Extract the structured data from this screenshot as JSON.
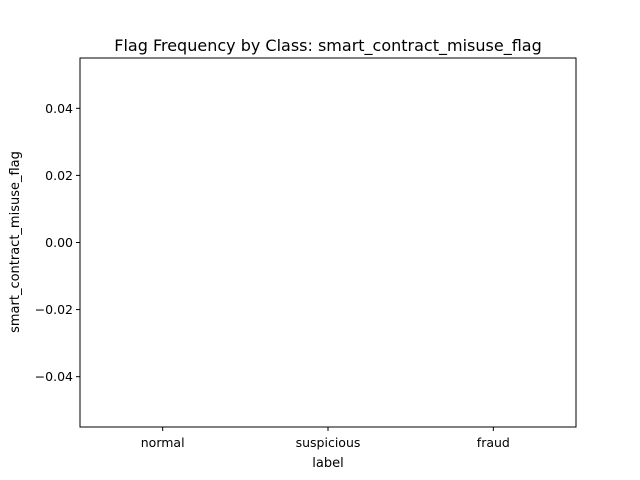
{
  "chart_data": {
    "type": "bar",
    "title": "Flag Frequency by Class: smart_contract_misuse_flag",
    "xlabel": "label",
    "ylabel": "smart_contract_misuse_flag",
    "categories": [
      "normal",
      "suspicious",
      "fraud"
    ],
    "values": [
      0,
      0,
      0
    ],
    "ylim": [
      -0.055,
      0.055
    ],
    "yticks": [
      0.04,
      0.02,
      0.0,
      -0.02,
      -0.04
    ],
    "ytick_labels": [
      "0.04",
      "0.02",
      "0.00",
      "−0.02",
      "−0.04"
    ],
    "grid": false,
    "legend": "none"
  }
}
